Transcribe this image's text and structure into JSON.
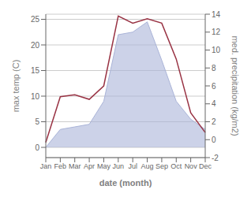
{
  "chart_data": {
    "type": "area",
    "xlabel": "date (month)",
    "ylabel": "max temp (C)",
    "y2label": "med. precipitation (kg/m2)",
    "categories": [
      "Jan",
      "Feb",
      "Mar",
      "Apr",
      "May",
      "Jun",
      "Jul",
      "Aug",
      "Sep",
      "Oct",
      "Nov",
      "Dec"
    ],
    "series": [
      {
        "type": "area",
        "color": "#aab4d8",
        "values": [
          0.0,
          3.5,
          4.0,
          4.5,
          9.0,
          22.0,
          22.5,
          24.5,
          17.0,
          9.0,
          5.5,
          3.5
        ]
      },
      {
        "type": "line",
        "color": "#993344",
        "axis": "y2",
        "values": [
          -0.3,
          4.8,
          5.0,
          4.5,
          6.0,
          13.8,
          13.0,
          13.5,
          13.0,
          9.0,
          3.0,
          0.8
        ]
      }
    ],
    "ylim": [
      -2,
      26
    ],
    "yticks": [
      0,
      5,
      10,
      15,
      20,
      25
    ],
    "y2lim": [
      -2,
      14
    ],
    "y2ticks": [
      -2,
      0,
      2,
      4,
      6,
      8,
      10,
      12,
      14
    ],
    "grid": true
  }
}
